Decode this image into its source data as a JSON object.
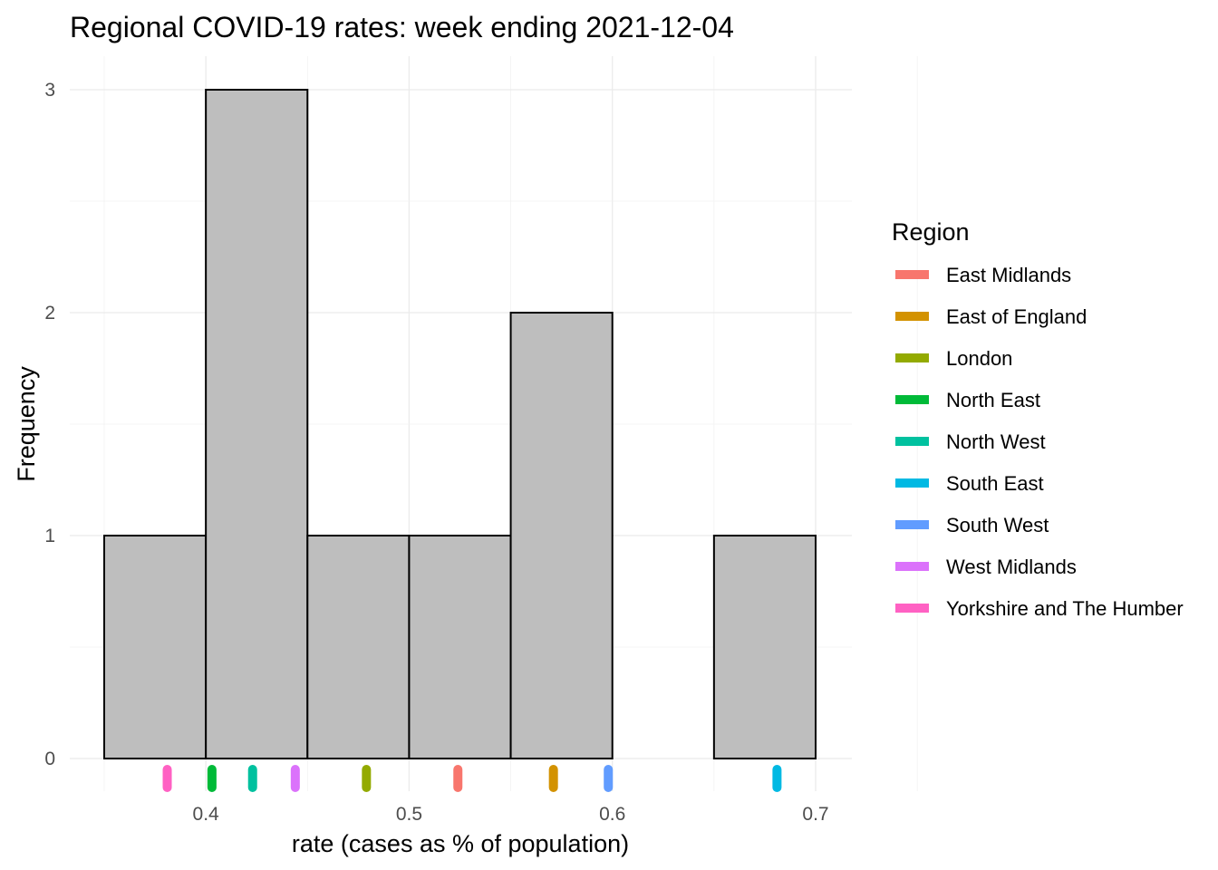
{
  "chart_data": {
    "type": "histogram",
    "title": "Regional COVID-19 rates: week ending 2021-12-04",
    "xlabel": "rate (cases as % of population)",
    "ylabel": "Frequency",
    "xlim": [
      0.35,
      0.7
    ],
    "ylim": [
      0,
      3
    ],
    "x_ticks": [
      0.4,
      0.5,
      0.6,
      0.7
    ],
    "x_tick_labels": [
      "0.4",
      "0.5",
      "0.6",
      "0.7"
    ],
    "y_ticks": [
      0,
      1,
      2,
      3
    ],
    "y_tick_labels": [
      "0",
      "1",
      "2",
      "3"
    ],
    "grid": true,
    "bar_fill": "#bebebe",
    "bar_stroke": "#000000",
    "bins": [
      {
        "x0": 0.35,
        "x1": 0.4,
        "count": 1
      },
      {
        "x0": 0.4,
        "x1": 0.45,
        "count": 3
      },
      {
        "x0": 0.45,
        "x1": 0.5,
        "count": 1
      },
      {
        "x0": 0.5,
        "x1": 0.55,
        "count": 1
      },
      {
        "x0": 0.55,
        "x1": 0.6,
        "count": 2
      },
      {
        "x0": 0.6,
        "x1": 0.65,
        "count": 0
      },
      {
        "x0": 0.65,
        "x1": 0.7,
        "count": 1
      }
    ],
    "rug": [
      {
        "region": "Yorkshire and The Humber",
        "rate": 0.381
      },
      {
        "region": "North East",
        "rate": 0.403
      },
      {
        "region": "North West",
        "rate": 0.423
      },
      {
        "region": "West Midlands",
        "rate": 0.444
      },
      {
        "region": "London",
        "rate": 0.479
      },
      {
        "region": "East Midlands",
        "rate": 0.524
      },
      {
        "region": "East of England",
        "rate": 0.571
      },
      {
        "region": "South West",
        "rate": 0.598
      },
      {
        "region": "South East",
        "rate": 0.681
      }
    ],
    "legend": {
      "title": "Region",
      "placement": "right",
      "items": [
        {
          "label": "East Midlands",
          "color": "#F8766D"
        },
        {
          "label": "East of England",
          "color": "#D39200"
        },
        {
          "label": "London",
          "color": "#93AA00"
        },
        {
          "label": "North East",
          "color": "#00BA38"
        },
        {
          "label": "North West",
          "color": "#00C19F"
        },
        {
          "label": "South East",
          "color": "#00B9E3"
        },
        {
          "label": "South West",
          "color": "#619CFF"
        },
        {
          "label": "West Midlands",
          "color": "#DB72FB"
        },
        {
          "label": "Yorkshire and The Humber",
          "color": "#FF61C3"
        }
      ]
    }
  }
}
